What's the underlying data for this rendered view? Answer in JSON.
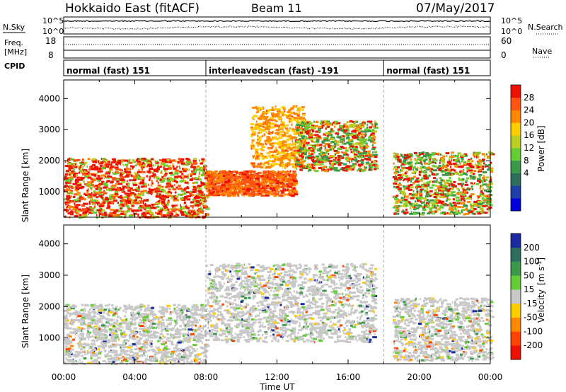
{
  "header": {
    "station": "Hokkaido East (fitACF)",
    "beam": "Beam 11",
    "date": "07/May/2017"
  },
  "top_panels": {
    "nsky_label": "N.Sky",
    "nsky_ticks_left": [
      "10^5",
      "10^0"
    ],
    "nsky_ticks_right": [
      "10^5",
      "10^0"
    ],
    "nsearch_label": "N.Search",
    "freq_label": "Freq.",
    "freq_unit": "[MHz]",
    "freq_ticks": [
      "18",
      "8"
    ],
    "nave_label": "Nave",
    "nave_ticks": [
      "60",
      "0"
    ],
    "cpid_label": "CPID"
  },
  "modes": [
    {
      "label": "normal (fast) 151",
      "start_h": 0,
      "end_h": 8
    },
    {
      "label": "interleavedscan (fast) -191",
      "start_h": 8,
      "end_h": 18
    },
    {
      "label": "normal (fast) 151",
      "start_h": 18,
      "end_h": 24
    }
  ],
  "axes": {
    "xlabel": "Time UT",
    "xticks": [
      "00:00",
      "04:00",
      "08:00",
      "12:00",
      "16:00",
      "20:00",
      "00:00"
    ],
    "ylabel": "Slant Range [km]",
    "yticks": [
      "4000",
      "3000",
      "2000",
      "1000"
    ]
  },
  "colorbars": {
    "power": {
      "label": "Power [dB]",
      "ticks": [
        "28",
        "24",
        "20",
        "16",
        "12",
        "8",
        "4"
      ],
      "colors": [
        "#0000dd",
        "#1f3fa8",
        "#2d6e5c",
        "#3b9a4a",
        "#66cc33",
        "#bbcc22",
        "#ffcc00",
        "#ff8800",
        "#ff5511",
        "#ee1100"
      ]
    },
    "velocity": {
      "label": "Velocity",
      "unit": "[m s",
      "unit_exp": "-1",
      "unit_close": "]",
      "ticks": [
        "200",
        "100",
        "50",
        "15",
        "-15",
        "-50",
        "-100",
        "-200"
      ],
      "colors": [
        "#1a2aa0",
        "#2d6e5c",
        "#3b9a4a",
        "#66cc33",
        "#c8c8c8",
        "#ffcc00",
        "#ff8800",
        "#ff4400",
        "#ee1100"
      ]
    }
  },
  "chart_data": [
    {
      "type": "heatmap",
      "title": "Power",
      "xlabel": "Time UT",
      "ylabel": "Slant Range [km]",
      "xlim": [
        0,
        24
      ],
      "ylim": [
        180,
        4600
      ],
      "colorbar": "Power [dB]",
      "colorbar_range": [
        0,
        32
      ],
      "bands": [
        {
          "t0": 0.0,
          "t1": 8.0,
          "r0": 200,
          "r1": 2100,
          "level": "mixed-high"
        },
        {
          "t0": 8.0,
          "t1": 13.0,
          "r0": 900,
          "r1": 1700,
          "level": 28
        },
        {
          "t0": 10.5,
          "t1": 13.5,
          "r0": 1800,
          "r1": 3800,
          "level": 24
        },
        {
          "t0": 13.0,
          "t1": 17.5,
          "r0": 1700,
          "r1": 3300,
          "level": "mixed"
        },
        {
          "t0": 18.5,
          "t1": 24.0,
          "r0": 300,
          "r1": 2300,
          "level": "mixed"
        }
      ]
    },
    {
      "type": "heatmap",
      "title": "Velocity",
      "xlabel": "Time UT",
      "ylabel": "Slant Range [km]",
      "xlim": [
        0,
        24
      ],
      "ylim": [
        180,
        4600
      ],
      "colorbar": "Velocity [m s^-1]",
      "colorbar_range": [
        -200,
        200
      ],
      "bands": [
        {
          "t0": 0.0,
          "t1": 8.0,
          "r0": 200,
          "r1": 2100,
          "level": "near-zero"
        },
        {
          "t0": 8.0,
          "t1": 17.5,
          "r0": 900,
          "r1": 3400,
          "level": "near-zero"
        },
        {
          "t0": 18.5,
          "t1": 24.0,
          "r0": 300,
          "r1": 2300,
          "level": "near-zero"
        }
      ]
    }
  ]
}
